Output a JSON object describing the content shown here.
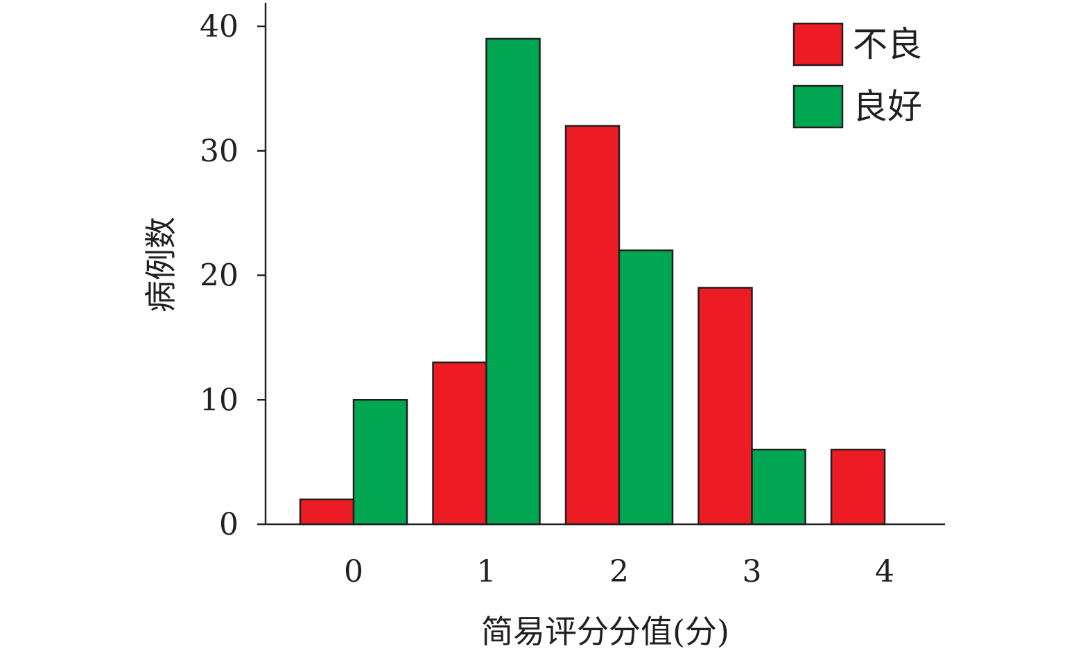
{
  "chart_data": {
    "type": "bar",
    "categories": [
      "0",
      "1",
      "2",
      "3",
      "4"
    ],
    "series": [
      {
        "name": "不良",
        "color": "#ed1c24",
        "values": [
          2,
          13,
          32,
          19,
          6
        ]
      },
      {
        "name": "良好",
        "color": "#00a651",
        "values": [
          10,
          39,
          22,
          6,
          0
        ]
      }
    ],
    "xlabel": "简易评分分值(分)",
    "ylabel": "病例数",
    "ylim": [
      0,
      40
    ],
    "yticks": [
      0,
      10,
      20,
      30,
      40
    ],
    "grid": false,
    "legend": "top-right"
  }
}
